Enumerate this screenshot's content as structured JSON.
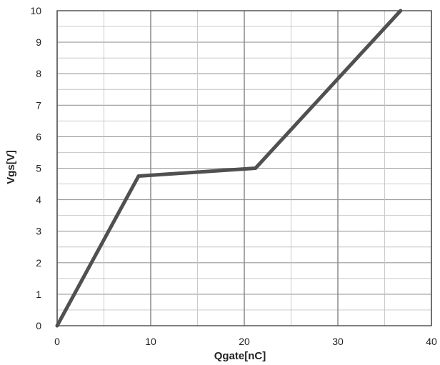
{
  "chart_data": {
    "type": "line",
    "title": "",
    "xlabel": "Qgate[nC]",
    "ylabel": "Vgs[V]",
    "xlim": [
      0,
      40
    ],
    "ylim": [
      0,
      10
    ],
    "x_ticks": [
      0,
      10,
      20,
      30,
      40
    ],
    "y_ticks": [
      0,
      1,
      2,
      3,
      4,
      5,
      6,
      7,
      8,
      9,
      10
    ],
    "x_minor_step": 5,
    "y_minor_step": 0.5,
    "grid": true,
    "legend": "none",
    "series": [
      {
        "color": "#505050",
        "x": [
          0,
          8.7,
          21.2,
          36.7
        ],
        "y": [
          0,
          4.75,
          5.0,
          10.0
        ]
      }
    ]
  }
}
